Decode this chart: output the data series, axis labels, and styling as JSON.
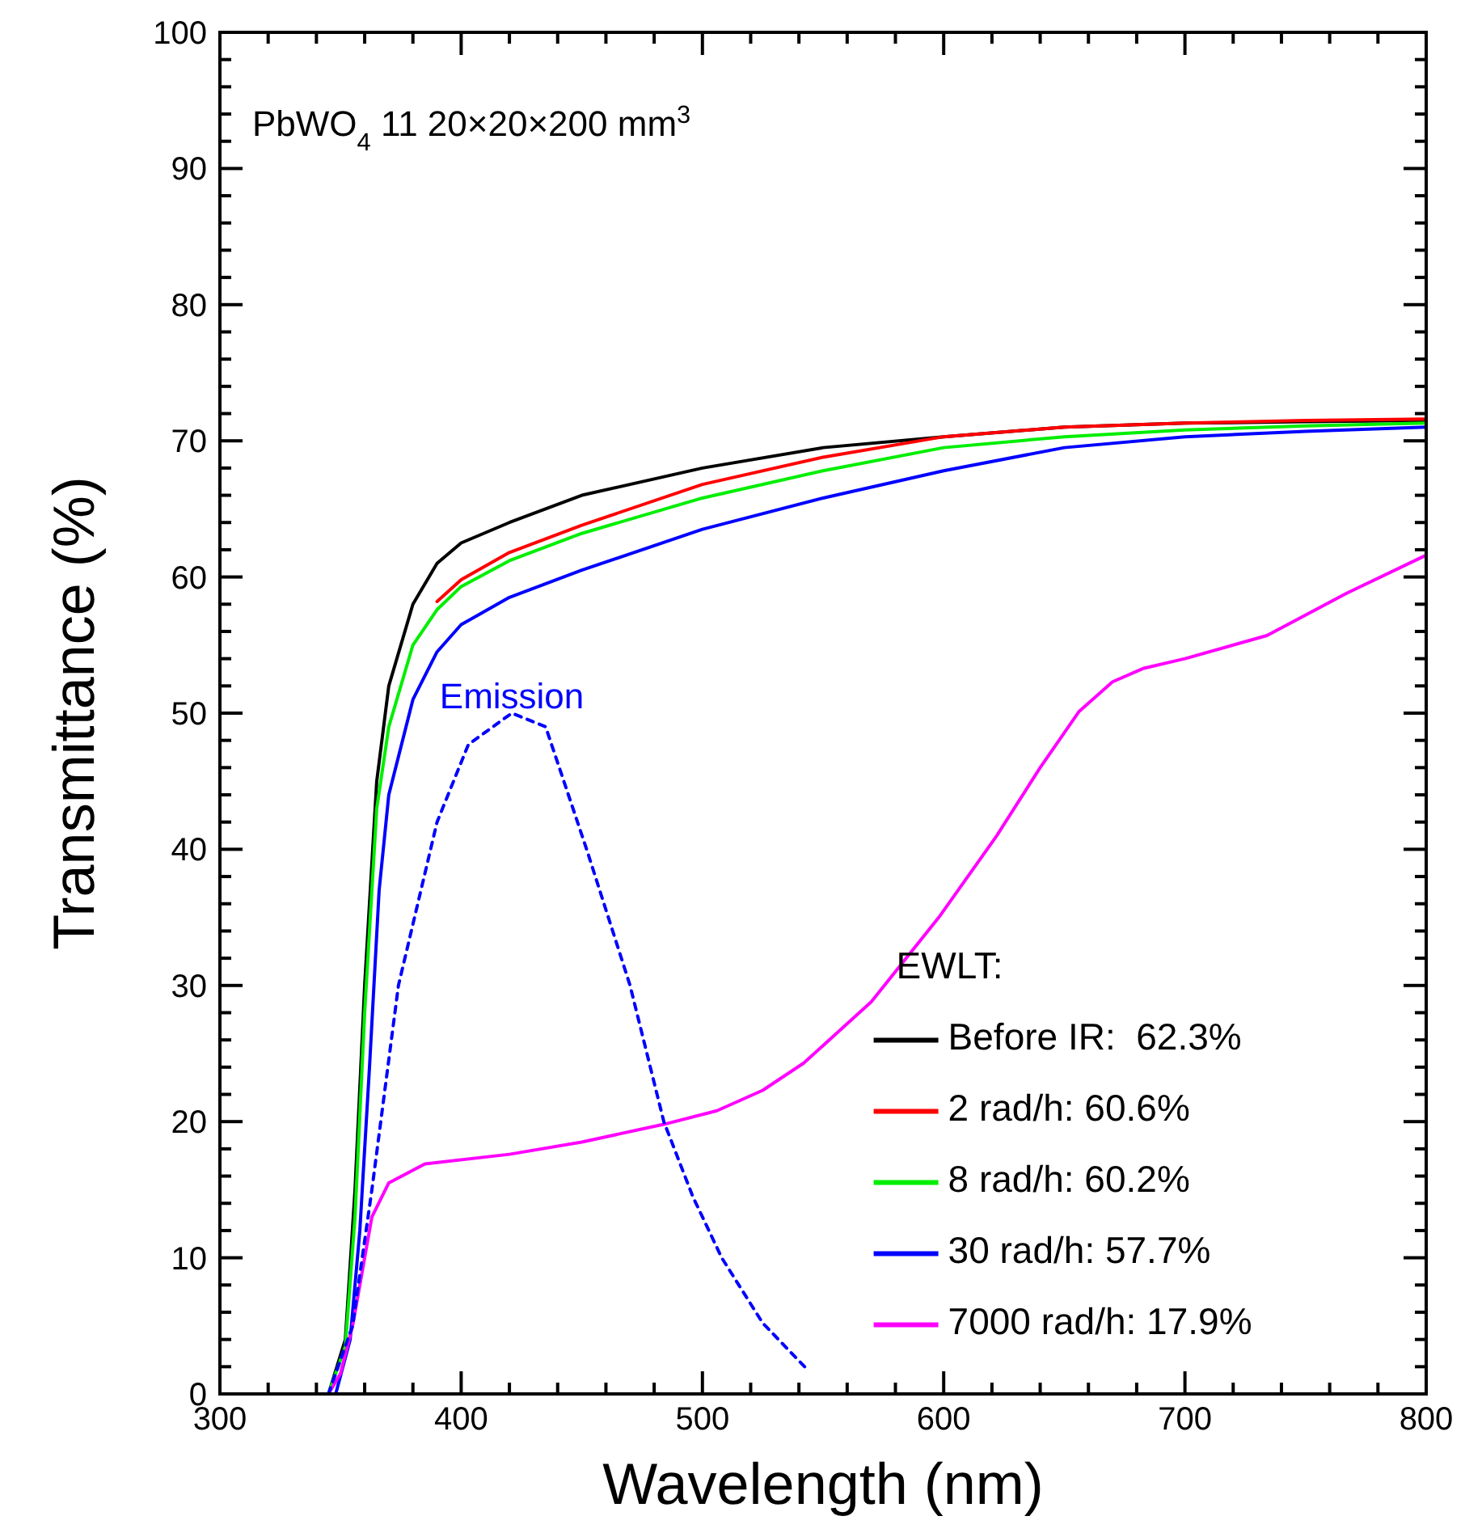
{
  "chart_data": {
    "type": "line",
    "title": "PbWO$_{4}$ 11 20×20×200 mm$^{3}$",
    "xlabel": "Wavelength (nm)",
    "ylabel": "Transmittance (%)",
    "legend_title": "EWLT:",
    "legend": "bottom right",
    "grid": false,
    "xlim": [
      300,
      800
    ],
    "ylim": [
      0,
      100
    ],
    "xticks": [
      300,
      {
        "value": 320,
        "label": null
      },
      {
        "value": 340,
        "label": null
      },
      {
        "value": 360,
        "label": null
      },
      {
        "value": 380,
        "label": null
      },
      400,
      {
        "value": 420,
        "label": null
      },
      {
        "value": 440,
        "label": null
      },
      {
        "value": 460,
        "label": null
      },
      {
        "value": 480,
        "label": null
      },
      500,
      {
        "value": 520,
        "label": null
      },
      {
        "value": 540,
        "label": null
      },
      {
        "value": 560,
        "label": null
      },
      {
        "value": 580,
        "label": null
      },
      600,
      {
        "value": 620,
        "label": null
      },
      {
        "value": 640,
        "label": null
      },
      {
        "value": 660,
        "label": null
      },
      {
        "value": 680,
        "label": null
      },
      700,
      {
        "value": 720,
        "label": null
      },
      {
        "value": 740,
        "label": null
      },
      {
        "value": 760,
        "label": null
      },
      {
        "value": 780,
        "label": null
      },
      800
    ],
    "yticks": [
      0,
      {
        "value": 2,
        "label": null
      },
      {
        "value": 4,
        "label": null
      },
      {
        "value": 6,
        "label": null
      },
      {
        "value": 8,
        "label": null
      },
      10,
      {
        "value": 12,
        "label": null
      },
      {
        "value": 14,
        "label": null
      },
      {
        "value": 16,
        "label": null
      },
      {
        "value": 18,
        "label": null
      },
      20,
      {
        "value": 22,
        "label": null
      },
      {
        "value": 24,
        "label": null
      },
      {
        "value": 26,
        "label": null
      },
      {
        "value": 28,
        "label": null
      },
      30,
      {
        "value": 32,
        "label": null
      },
      {
        "value": 34,
        "label": null
      },
      {
        "value": 36,
        "label": null
      },
      {
        "value": 38,
        "label": null
      },
      40,
      {
        "value": 42,
        "label": null
      },
      {
        "value": 44,
        "label": null
      },
      {
        "value": 46,
        "label": null
      },
      {
        "value": 48,
        "label": null
      },
      50,
      {
        "value": 52,
        "label": null
      },
      {
        "value": 54,
        "label": null
      },
      {
        "value": 56,
        "label": null
      },
      {
        "value": 58,
        "label": null
      },
      60,
      {
        "value": 62,
        "label": null
      },
      {
        "value": 64,
        "label": null
      },
      {
        "value": 66,
        "label": null
      },
      {
        "value": 68,
        "label": null
      },
      70,
      {
        "value": 72,
        "label": null
      },
      {
        "value": 74,
        "label": null
      },
      {
        "value": 76,
        "label": null
      },
      {
        "value": 78,
        "label": null
      },
      80,
      {
        "value": 82,
        "label": null
      },
      {
        "value": 84,
        "label": null
      },
      {
        "value": 86,
        "label": null
      },
      {
        "value": 88,
        "label": null
      },
      90,
      {
        "value": 92,
        "label": null
      },
      {
        "value": 94,
        "label": null
      },
      {
        "value": 96,
        "label": null
      },
      {
        "value": 98,
        "label": null
      },
      100
    ],
    "series": [
      {
        "name": "Before IR:  62.3%",
        "color": "#000000",
        "line_style": "solid",
        "x": [
          345,
          352,
          356,
          360,
          365,
          370,
          380,
          390,
          400,
          420,
          450,
          500,
          550,
          600,
          650,
          700,
          750,
          800
        ],
        "values": [
          0,
          4,
          15,
          30,
          45,
          52,
          58,
          61,
          62.5,
          64,
          66,
          68,
          69.5,
          70.3,
          71,
          71.3,
          71.4,
          71.5
        ]
      },
      {
        "name": "2 rad/h: 60.6%",
        "color": "#ff0000",
        "line_style": "solid",
        "x": [
          390,
          400,
          420,
          450,
          500,
          550,
          600,
          650,
          700,
          750,
          800
        ],
        "values": [
          58.2,
          59.8,
          61.8,
          63.8,
          66.8,
          68.8,
          70.3,
          71,
          71.3,
          71.5,
          71.6
        ]
      },
      {
        "name": "8 rad/h: 60.2%",
        "color": "#00ee00",
        "line_style": "solid",
        "x": [
          345,
          352,
          356,
          360,
          365,
          370,
          380,
          390,
          400,
          420,
          450,
          500,
          550,
          600,
          650,
          700,
          750,
          800
        ],
        "values": [
          0,
          3.5,
          13,
          28,
          43,
          49,
          55,
          57.6,
          59.3,
          61.2,
          63.2,
          65.8,
          67.8,
          69.5,
          70.3,
          70.8,
          71.1,
          71.3
        ]
      },
      {
        "name": "30 rad/h: 57.7%",
        "color": "#0000ff",
        "line_style": "solid",
        "x": [
          348,
          354,
          358,
          362,
          366,
          370,
          380,
          390,
          400,
          420,
          450,
          500,
          550,
          600,
          650,
          700,
          750,
          800
        ],
        "values": [
          0,
          4,
          12,
          24,
          37,
          44,
          51,
          54.5,
          56.5,
          58.5,
          60.5,
          63.5,
          65.8,
          67.8,
          69.5,
          70.3,
          70.7,
          71
        ]
      },
      {
        "name": "7000 rad/h: 17.9%",
        "color": "#ff00ff",
        "line_style": "solid",
        "x": [
          345,
          350,
          355,
          360,
          363,
          370,
          385,
          420,
          450,
          484,
          506,
          525,
          542,
          570,
          598,
          622,
          640,
          656,
          670,
          683,
          700,
          734,
          767,
          800
        ],
        "values": [
          0,
          1.5,
          5,
          10,
          13,
          15.5,
          16.9,
          17.6,
          18.5,
          19.8,
          20.8,
          22.3,
          24.3,
          28.8,
          35,
          41,
          46,
          50.1,
          52.3,
          53.3,
          54,
          55.7,
          58.8,
          61.6
        ]
      },
      {
        "name": "Emission",
        "color": "#0000ff",
        "line_style": "dashed",
        "x": [
          345,
          355,
          363,
          374,
          390,
          403,
          421,
          435,
          452,
          470,
          484,
          496,
          508,
          525,
          544
        ],
        "values": [
          0,
          5,
          15,
          30,
          42,
          47.7,
          50,
          49,
          40,
          30,
          20,
          14.5,
          10,
          5.2,
          1.7
        ]
      }
    ]
  }
}
